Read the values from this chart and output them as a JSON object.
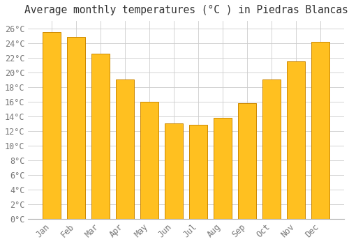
{
  "title": "Average monthly temperatures (°C ) in Piedras Blancas",
  "months": [
    "Jan",
    "Feb",
    "Mar",
    "Apr",
    "May",
    "Jun",
    "Jul",
    "Aug",
    "Sep",
    "Oct",
    "Nov",
    "Dec"
  ],
  "values": [
    25.5,
    24.8,
    22.5,
    19.0,
    16.0,
    13.0,
    12.8,
    13.8,
    15.8,
    19.0,
    21.5,
    24.2
  ],
  "bar_color": "#FFC020",
  "bar_edge_color": "#CC8800",
  "background_color": "#FFFFFF",
  "grid_color": "#CCCCCC",
  "text_color": "#777777",
  "ylim": [
    0,
    27
  ],
  "yticks": [
    0,
    2,
    4,
    6,
    8,
    10,
    12,
    14,
    16,
    18,
    20,
    22,
    24,
    26
  ],
  "title_fontsize": 10.5,
  "tick_fontsize": 8.5,
  "bar_width": 0.75
}
